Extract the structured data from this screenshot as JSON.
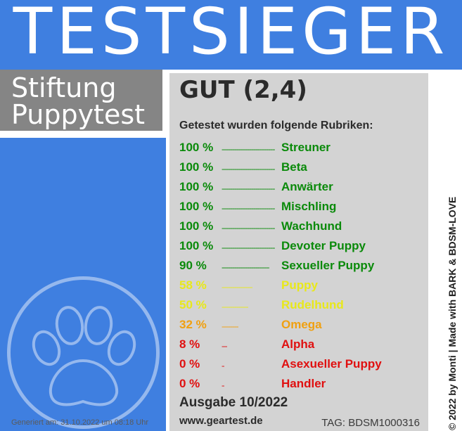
{
  "header": {
    "title": "TESTSIEGER"
  },
  "brand": {
    "line1": "Stiftung",
    "line2": "Puppytest"
  },
  "grade": "GUT (2,4)",
  "intro": "Getestet wurden folgende Rubriken:",
  "rubrics": [
    {
      "percent": "100 %",
      "category": "Streuner",
      "color": "#0a8a0a",
      "value": 100
    },
    {
      "percent": "100 %",
      "category": "Beta",
      "color": "#0a8a0a",
      "value": 100
    },
    {
      "percent": "100 %",
      "category": "Anwärter",
      "color": "#0a8a0a",
      "value": 100
    },
    {
      "percent": "100 %",
      "category": "Mischling",
      "color": "#0a8a0a",
      "value": 100
    },
    {
      "percent": "100 %",
      "category": "Wachhund",
      "color": "#0a8a0a",
      "value": 100
    },
    {
      "percent": "100 %",
      "category": "Devoter Puppy",
      "color": "#0a8a0a",
      "value": 100
    },
    {
      "percent": "90 %",
      "category": "Sexueller Puppy",
      "color": "#0a8a0a",
      "value": 90
    },
    {
      "percent": "58 %",
      "category": "Puppy",
      "color": "#e8e81a",
      "value": 58
    },
    {
      "percent": "50 %",
      "category": "Rudelhund",
      "color": "#e8e81a",
      "value": 50
    },
    {
      "percent": "32 %",
      "category": "Omega",
      "color": "#f0a010",
      "value": 32
    },
    {
      "percent": "8 %",
      "category": "Alpha",
      "color": "#e01010",
      "value": 8
    },
    {
      "percent": "0 %",
      "category": "Asexueller Puppy",
      "color": "#e01010",
      "value": 0
    },
    {
      "percent": "0 %",
      "category": "Handler",
      "color": "#e01010",
      "value": 0
    }
  ],
  "issue": "Ausgabe 10/2022",
  "url": "www.geartest.de",
  "tag": "TAG: BDSM1000316",
  "generated": "Generiert am: 31.10.2022 um 08:18 Uhr",
  "credit": "© 2022 by Monti | Made with BARK & BDSM-LOVE",
  "colors": {
    "blue": "#3f7fe0",
    "panel": "#d3d3d3",
    "brand_gray": "#858585"
  },
  "icons": {
    "paw": "paw-print-icon"
  }
}
